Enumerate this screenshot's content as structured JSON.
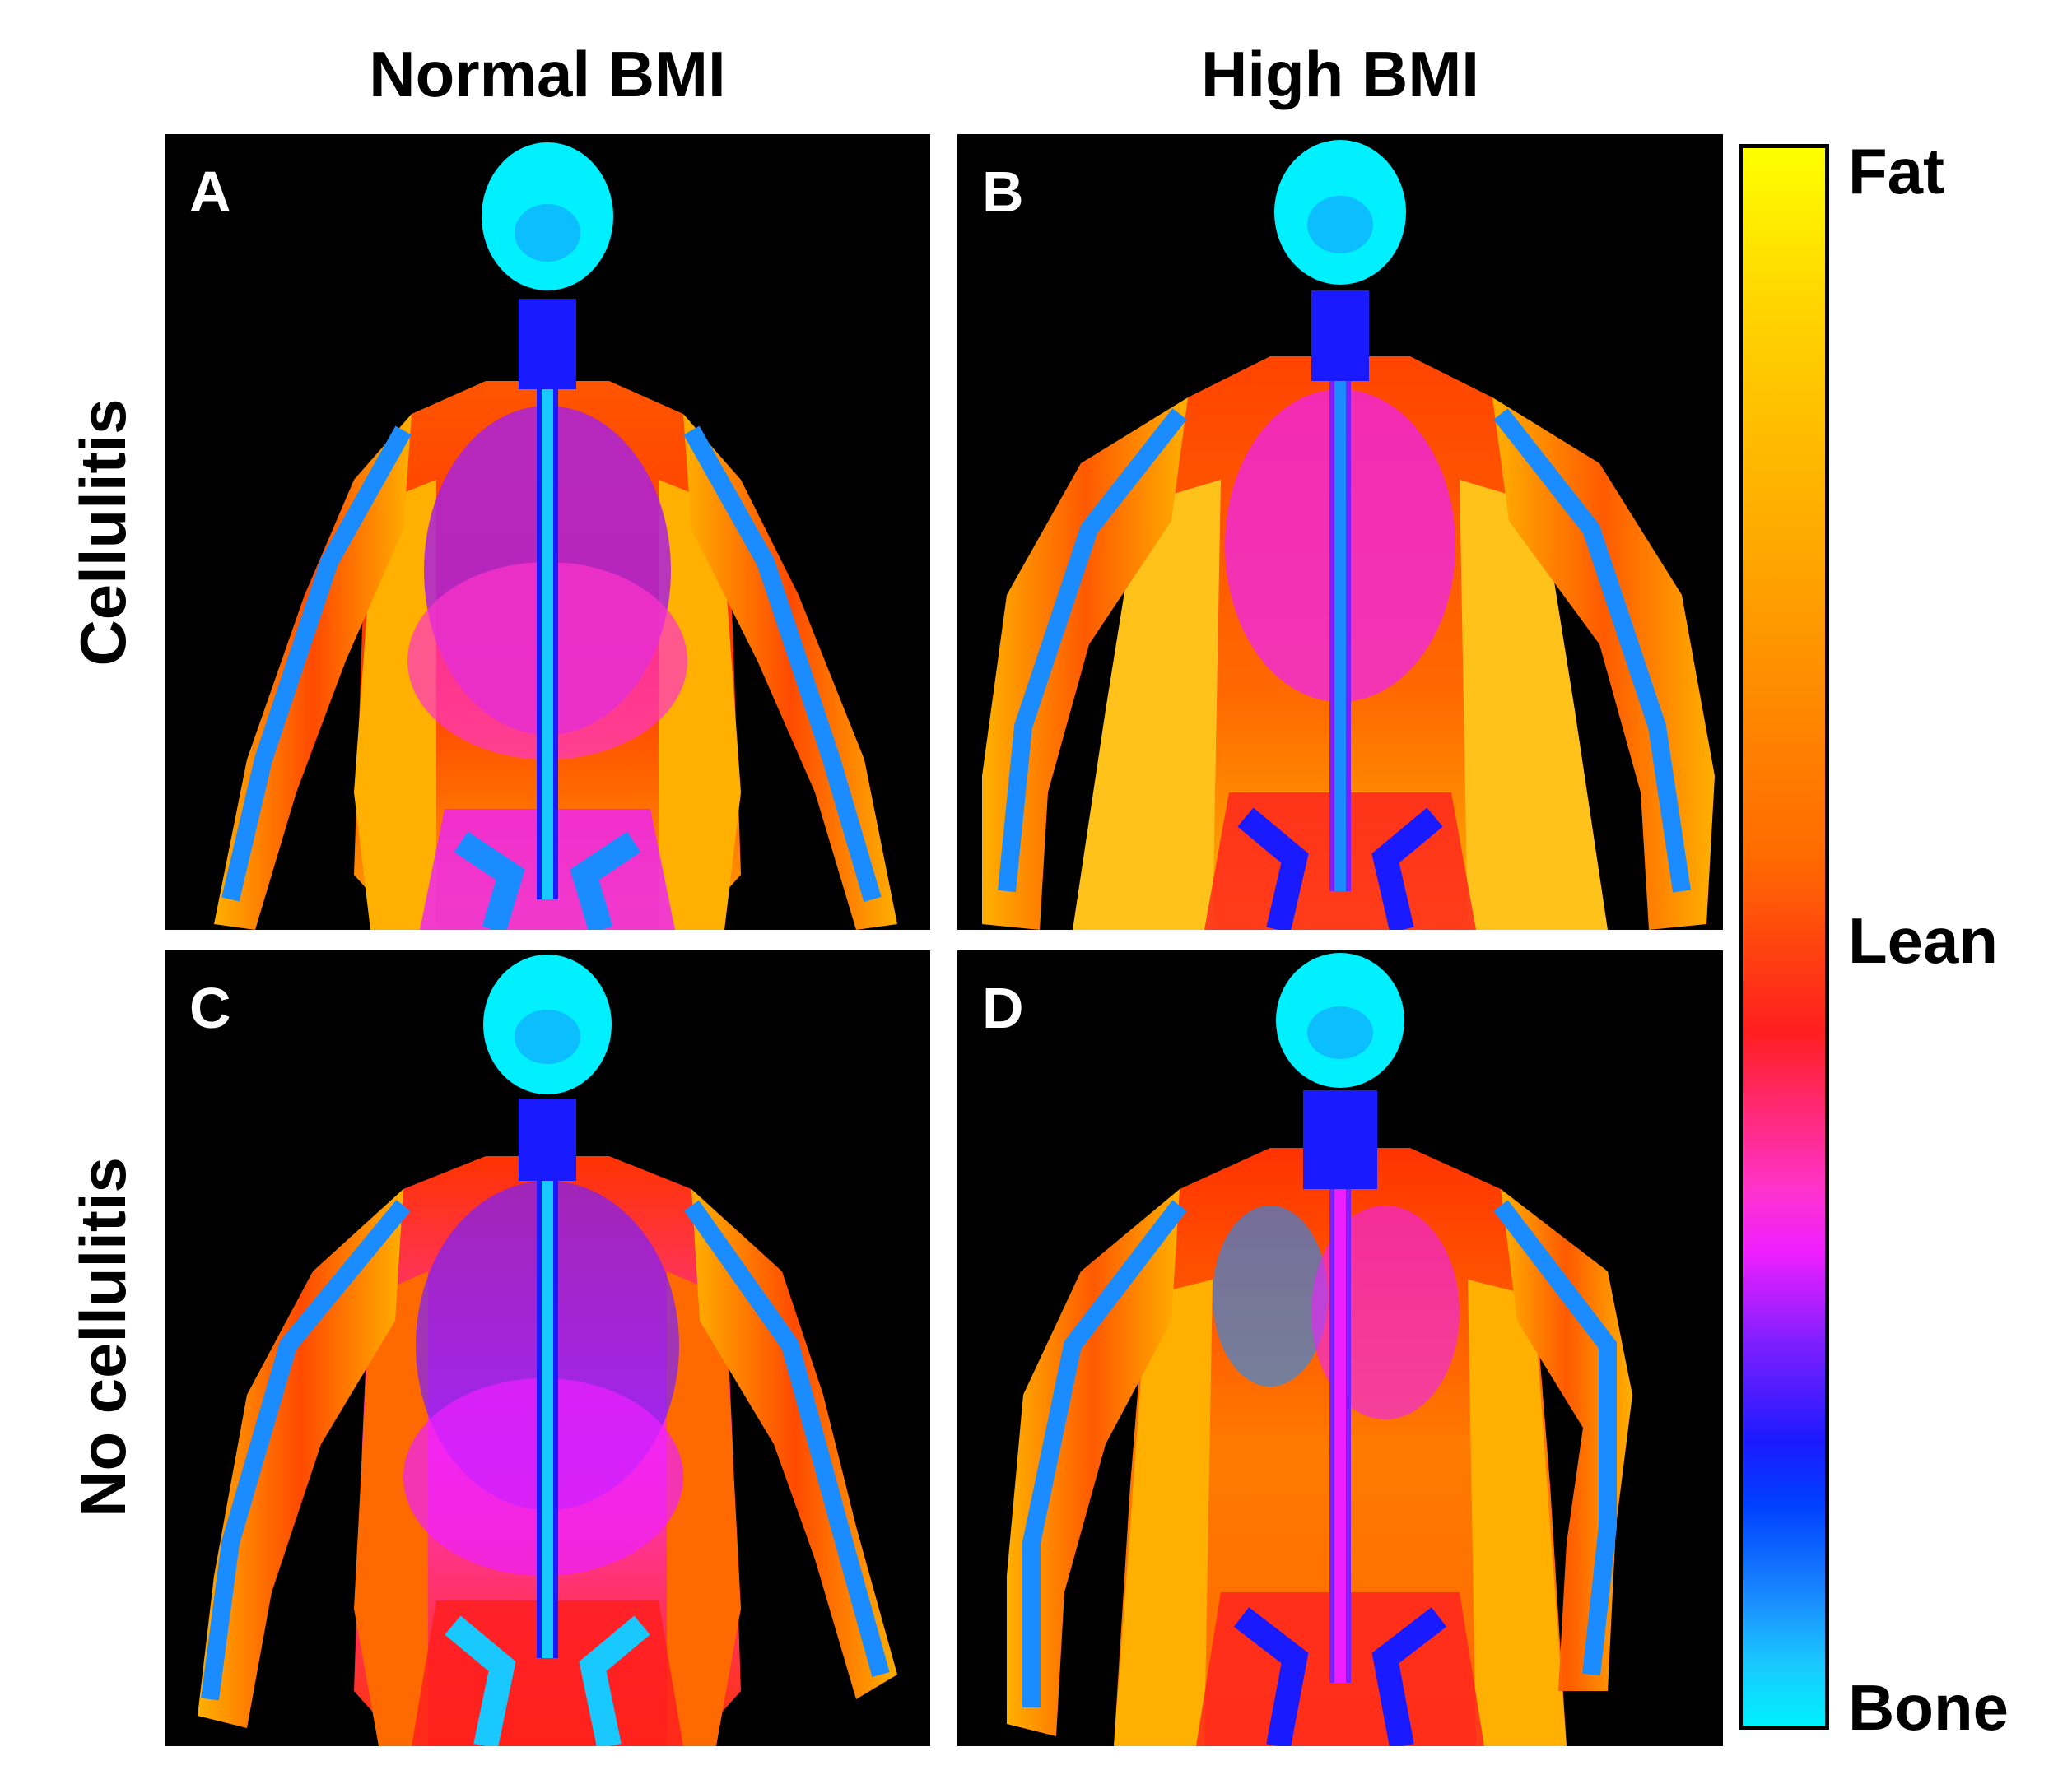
{
  "columns": {
    "normal": "Normal BMI",
    "high": "High BMI"
  },
  "rows": {
    "cellulitis": "Cellulitis",
    "no_cellulitis": "No cellulitis"
  },
  "panels": [
    {
      "letter": "A"
    },
    {
      "letter": "B"
    },
    {
      "letter": "C"
    },
    {
      "letter": "D"
    }
  ],
  "colorbar": {
    "top_label": "Fat",
    "middle_label": "Lean",
    "bottom_label": "Bone",
    "colors": [
      "#ffff00",
      "#ffa000",
      "#ff1f1f",
      "#ee1fff",
      "#1a1aff",
      "#00f0ff"
    ]
  }
}
